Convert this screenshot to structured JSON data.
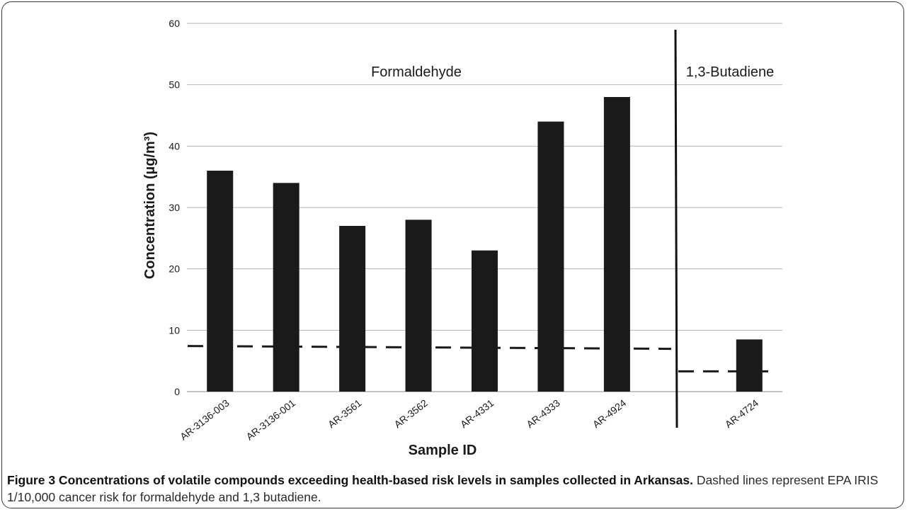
{
  "chart_data": {
    "type": "bar",
    "ylabel": "Concentration (µg/m³)",
    "xlabel": "Sample ID",
    "ylim": [
      0,
      60
    ],
    "yticks": [
      0,
      10,
      20,
      30,
      40,
      50,
      60
    ],
    "grid": true,
    "categories": [
      "AR-3136-003",
      "AR-3136-001",
      "AR-3561",
      "AR-3562",
      "AR-4331",
      "AR-4333",
      "AR-4924",
      "",
      "AR-4724"
    ],
    "values": [
      36,
      34,
      27,
      28,
      23,
      44,
      48,
      null,
      8.5
    ],
    "groups": [
      {
        "label": "Formaldehyde",
        "risk_level": 7.2
      },
      {
        "label": "1,3-Butadiene",
        "risk_level": 3.3
      }
    ],
    "bar_color": "#1a1a1a"
  },
  "caption": {
    "bold": "Figure 3 Concentrations of volatile compounds exceeding health-based risk levels in samples collected in Arkansas.",
    "text": " Dashed lines represent EPA IRIS 1/10,000 cancer risk for formaldehyde and 1,3 butadiene."
  }
}
